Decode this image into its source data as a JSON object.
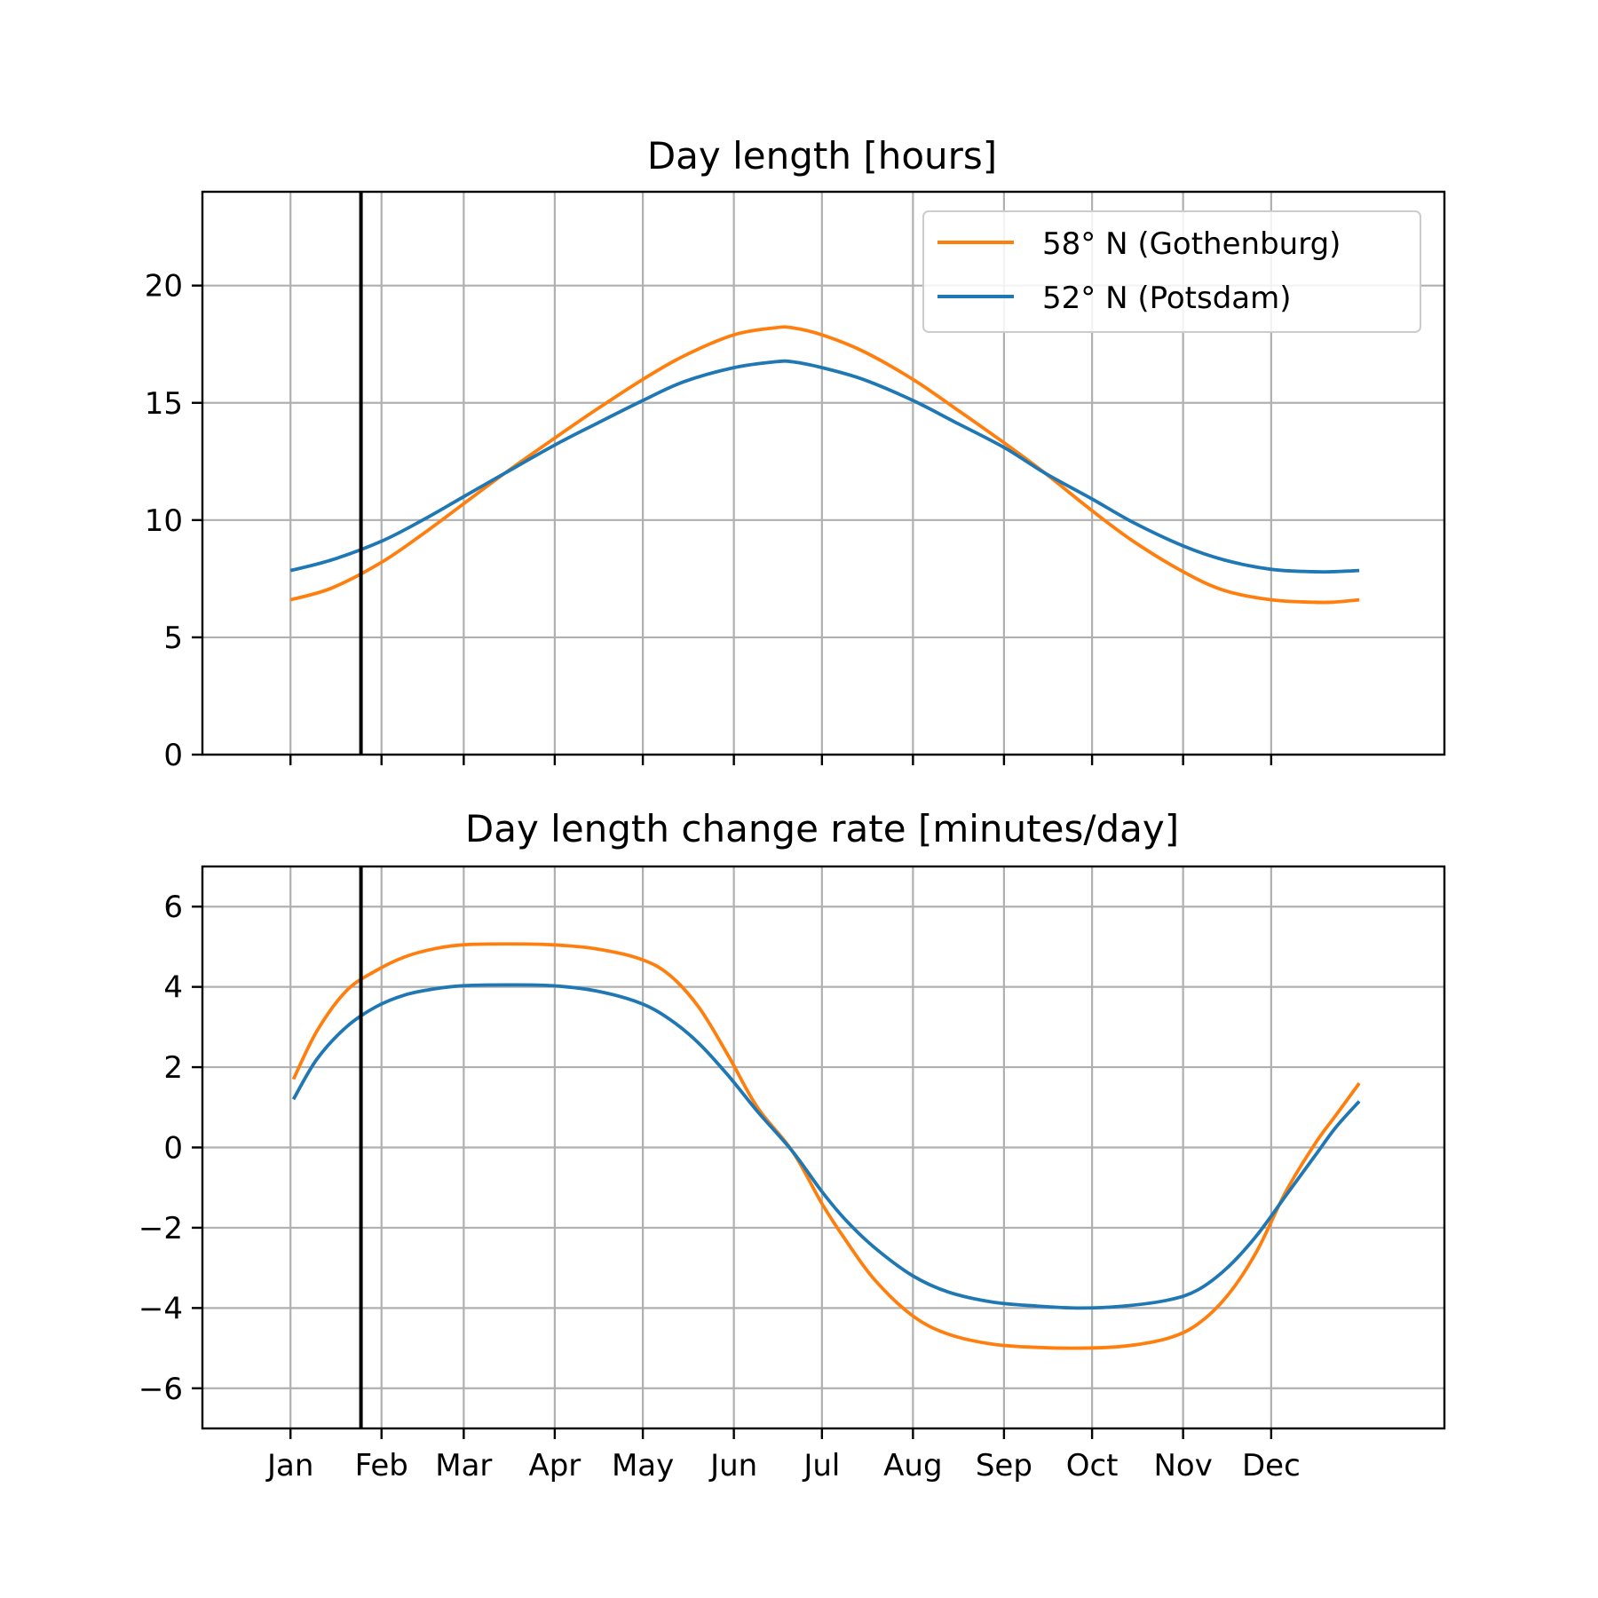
{
  "chart_data": [
    {
      "type": "line",
      "title": "Day length [hours]",
      "xlabel": "",
      "ylabel": "",
      "ylim": [
        0,
        24
      ],
      "yticks": [
        "0",
        "5",
        "10",
        "15",
        "20"
      ],
      "xticks": [
        "Jan",
        "Feb",
        "Mar",
        "Apr",
        "May",
        "Jun",
        "Jul",
        "Aug",
        "Sep",
        "Oct",
        "Nov",
        "Dec"
      ],
      "xtick_labels_shown": false,
      "grid": true,
      "legend_position": "upper right",
      "vertical_marker_day": 25,
      "x": [
        1,
        15,
        32,
        46,
        60,
        74,
        91,
        105,
        121,
        135,
        152,
        166,
        172,
        182,
        196,
        213,
        227,
        244,
        258,
        274,
        288,
        305,
        319,
        335,
        349,
        356,
        365
      ],
      "series": [
        {
          "name": "58° N (Gothenburg)",
          "color": "#ff7f0e",
          "values": [
            6.6,
            7.1,
            8.2,
            9.4,
            10.7,
            12.0,
            13.5,
            14.7,
            16.0,
            17.0,
            17.9,
            18.2,
            18.2,
            17.9,
            17.2,
            16.0,
            14.8,
            13.3,
            12.0,
            10.4,
            9.1,
            7.8,
            7.0,
            6.6,
            6.5,
            6.5,
            6.6
          ]
        },
        {
          "name": "52° N (Potsdam)",
          "color": "#1f77b4",
          "values": [
            7.85,
            8.3,
            9.1,
            10.0,
            11.0,
            12.0,
            13.2,
            14.1,
            15.1,
            15.9,
            16.5,
            16.75,
            16.75,
            16.5,
            16.0,
            15.1,
            14.2,
            13.1,
            12.0,
            10.9,
            9.9,
            8.9,
            8.3,
            7.9,
            7.8,
            7.8,
            7.85
          ]
        }
      ]
    },
    {
      "type": "line",
      "title": "Day length change rate [minutes/day]",
      "xlabel": "",
      "ylabel": "",
      "ylim": [
        -7,
        7
      ],
      "yticks": [
        "−6",
        "−4",
        "−2",
        "0",
        "2",
        "4",
        "6"
      ],
      "xticks": [
        "Jan",
        "Feb",
        "Mar",
        "Apr",
        "May",
        "Jun",
        "Jul",
        "Aug",
        "Sep",
        "Oct",
        "Nov",
        "Dec"
      ],
      "xtick_labels_shown": true,
      "grid": true,
      "vertical_marker_day": 25,
      "x": [
        2,
        10,
        20,
        30,
        40,
        50,
        60,
        75,
        90,
        105,
        120,
        130,
        140,
        150,
        160,
        172,
        182,
        190,
        200,
        213,
        225,
        240,
        255,
        270,
        285,
        300,
        310,
        320,
        330,
        340,
        350,
        357,
        365
      ],
      "series": [
        {
          "name": "58° N (Gothenburg)",
          "color": "#ff7f0e",
          "values": [
            1.7,
            2.9,
            3.9,
            4.4,
            4.75,
            4.95,
            5.05,
            5.07,
            5.05,
            4.95,
            4.7,
            4.3,
            3.5,
            2.3,
            1.0,
            -0.1,
            -1.4,
            -2.3,
            -3.3,
            -4.2,
            -4.65,
            -4.9,
            -4.98,
            -5.0,
            -4.95,
            -4.75,
            -4.4,
            -3.7,
            -2.6,
            -1.1,
            0.1,
            0.8,
            1.6
          ]
        },
        {
          "name": "52° N (Potsdam)",
          "color": "#1f77b4",
          "values": [
            1.2,
            2.2,
            3.0,
            3.5,
            3.8,
            3.95,
            4.03,
            4.05,
            4.03,
            3.9,
            3.6,
            3.2,
            2.6,
            1.8,
            0.9,
            -0.1,
            -1.1,
            -1.8,
            -2.5,
            -3.2,
            -3.6,
            -3.85,
            -3.95,
            -4.0,
            -3.95,
            -3.8,
            -3.55,
            -3.0,
            -2.2,
            -1.2,
            -0.2,
            0.5,
            1.15
          ]
        }
      ]
    }
  ]
}
